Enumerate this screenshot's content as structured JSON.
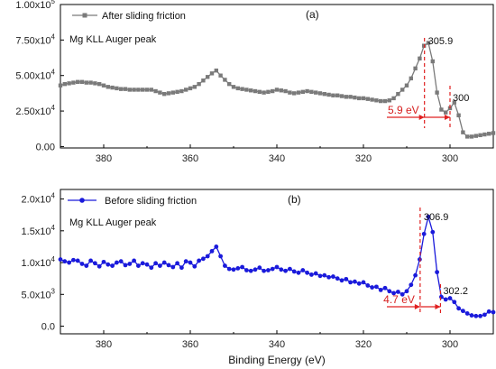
{
  "chart_data": [
    {
      "type": "line",
      "panel_label": "(a)",
      "annotation": "Mg KLL Auger peak",
      "legend": "After sliding friction",
      "color": "#7a7a7a",
      "marker": "square",
      "xlim": [
        390,
        290
      ],
      "ylim": [
        -1000.0,
        100000.0
      ],
      "xticks": [
        380,
        360,
        340,
        320,
        300
      ],
      "yticks": [
        {
          "v": 0,
          "label": "0.00"
        },
        {
          "v": 25000,
          "label": "2.50x10",
          "exp": "4"
        },
        {
          "v": 50000,
          "label": "5.00x10",
          "exp": "4"
        },
        {
          "v": 75000,
          "label": "7.50x10",
          "exp": "4"
        },
        {
          "v": 100000,
          "label": "1.00x10",
          "exp": "5"
        }
      ],
      "x": [
        390,
        389,
        388,
        387,
        386,
        385,
        384,
        383,
        382,
        381,
        380,
        379,
        378,
        377,
        376,
        375,
        374,
        373,
        372,
        371,
        370,
        369,
        368,
        367,
        366,
        365,
        364,
        363,
        362,
        361,
        360,
        359,
        358,
        357,
        356,
        355,
        354,
        353,
        352,
        351,
        350,
        349,
        348,
        347,
        346,
        345,
        344,
        343,
        342,
        341,
        340,
        339,
        338,
        337,
        336,
        335,
        334,
        333,
        332,
        331,
        330,
        329,
        328,
        327,
        326,
        325,
        324,
        323,
        322,
        321,
        320,
        319,
        318,
        317,
        316,
        315,
        314,
        313,
        312,
        311,
        310,
        309,
        308,
        307,
        306,
        305,
        304,
        303,
        302,
        301,
        300,
        299,
        298,
        297,
        296,
        295,
        294,
        293,
        292,
        291,
        290
      ],
      "y": [
        43000,
        44000,
        44500,
        45000,
        45500,
        45500,
        45000,
        45000,
        44500,
        44000,
        43000,
        42000,
        41500,
        41000,
        40500,
        40500,
        40000,
        40000,
        40000,
        40000,
        40000,
        40000,
        39000,
        38000,
        37000,
        37500,
        38000,
        38500,
        39000,
        40000,
        41000,
        42000,
        44000,
        46500,
        49000,
        51500,
        53500,
        50000,
        47000,
        44000,
        42000,
        41000,
        40500,
        40000,
        39500,
        39000,
        38500,
        38000,
        38500,
        39000,
        40000,
        39500,
        39000,
        38000,
        37500,
        38000,
        38500,
        39000,
        38500,
        38000,
        37500,
        37000,
        36500,
        36000,
        36000,
        35500,
        35000,
        35000,
        34500,
        34000,
        34000,
        33500,
        33000,
        32500,
        32000,
        32000,
        32500,
        34000,
        37000,
        40000,
        43000,
        48000,
        55000,
        62000,
        71000,
        73000,
        60000,
        38000,
        26000,
        24000,
        27000,
        31000,
        22000,
        10000,
        7000,
        7000,
        7500,
        8000,
        8500,
        9000,
        9500
      ],
      "peaks": [
        {
          "x": 305.9,
          "label": "305.9"
        },
        {
          "x": 300,
          "label": "300"
        }
      ],
      "shift_label": "5.9 eV"
    },
    {
      "type": "line",
      "panel_label": "(b)",
      "annotation": "Mg KLL Auger peak",
      "legend": "Before sliding friction",
      "color": "#1a1adb",
      "marker": "circle",
      "xlim": [
        390,
        290
      ],
      "ylim": [
        -1200,
        21500
      ],
      "xticks": [
        380,
        360,
        340,
        320,
        300
      ],
      "yticks": [
        {
          "v": 0,
          "label": "0.0"
        },
        {
          "v": 5000,
          "label": "5.0x10",
          "exp": "3"
        },
        {
          "v": 10000,
          "label": "1.0x10",
          "exp": "4"
        },
        {
          "v": 15000,
          "label": "1.5x10",
          "exp": "4"
        },
        {
          "v": 20000,
          "label": "2.0x10",
          "exp": "4"
        }
      ],
      "xlabel": "Binding Energy (eV)",
      "x": [
        390,
        389,
        388,
        387,
        386,
        385,
        384,
        383,
        382,
        381,
        380,
        379,
        378,
        377,
        376,
        375,
        374,
        373,
        372,
        371,
        370,
        369,
        368,
        367,
        366,
        365,
        364,
        363,
        362,
        361,
        360,
        359,
        358,
        357,
        356,
        355,
        354,
        353,
        352,
        351,
        350,
        349,
        348,
        347,
        346,
        345,
        344,
        343,
        342,
        341,
        340,
        339,
        338,
        337,
        336,
        335,
        334,
        333,
        332,
        331,
        330,
        329,
        328,
        327,
        326,
        325,
        324,
        323,
        322,
        321,
        320,
        319,
        318,
        317,
        316,
        315,
        314,
        313,
        312,
        311,
        310,
        309,
        308,
        307,
        306,
        305,
        304,
        303,
        302,
        301,
        300,
        299,
        298,
        297,
        296,
        295,
        294,
        293,
        292,
        291,
        290
      ],
      "y": [
        10500,
        10200,
        10000,
        10400,
        10300,
        9800,
        9500,
        10300,
        9900,
        9400,
        10100,
        9700,
        9500,
        10000,
        10200,
        9600,
        9800,
        10300,
        9500,
        9900,
        9700,
        9200,
        9900,
        9500,
        10000,
        9600,
        9300,
        9900,
        9200,
        10200,
        10000,
        9400,
        10300,
        10600,
        11000,
        11800,
        12500,
        11000,
        9500,
        9000,
        8900,
        9100,
        9300,
        8800,
        8700,
        8900,
        9200,
        8700,
        8800,
        9000,
        9300,
        8900,
        8700,
        9000,
        8600,
        8400,
        8800,
        8400,
        8100,
        8300,
        7900,
        8000,
        7700,
        7800,
        7500,
        7200,
        7400,
        6900,
        7000,
        6700,
        6900,
        6400,
        6100,
        6200,
        5700,
        6000,
        5500,
        5200,
        5400,
        5000,
        5500,
        6500,
        8000,
        10500,
        14500,
        17200,
        14800,
        8500,
        4600,
        4200,
        4400,
        3800,
        2800,
        2400,
        2000,
        1700,
        1600,
        1600,
        1800,
        2300,
        2200
      ],
      "peaks": [
        {
          "x": 306.9,
          "label": "306.9"
        },
        {
          "x": 302.2,
          "label": "302.2"
        }
      ],
      "shift_label": "4.7 eV"
    }
  ]
}
